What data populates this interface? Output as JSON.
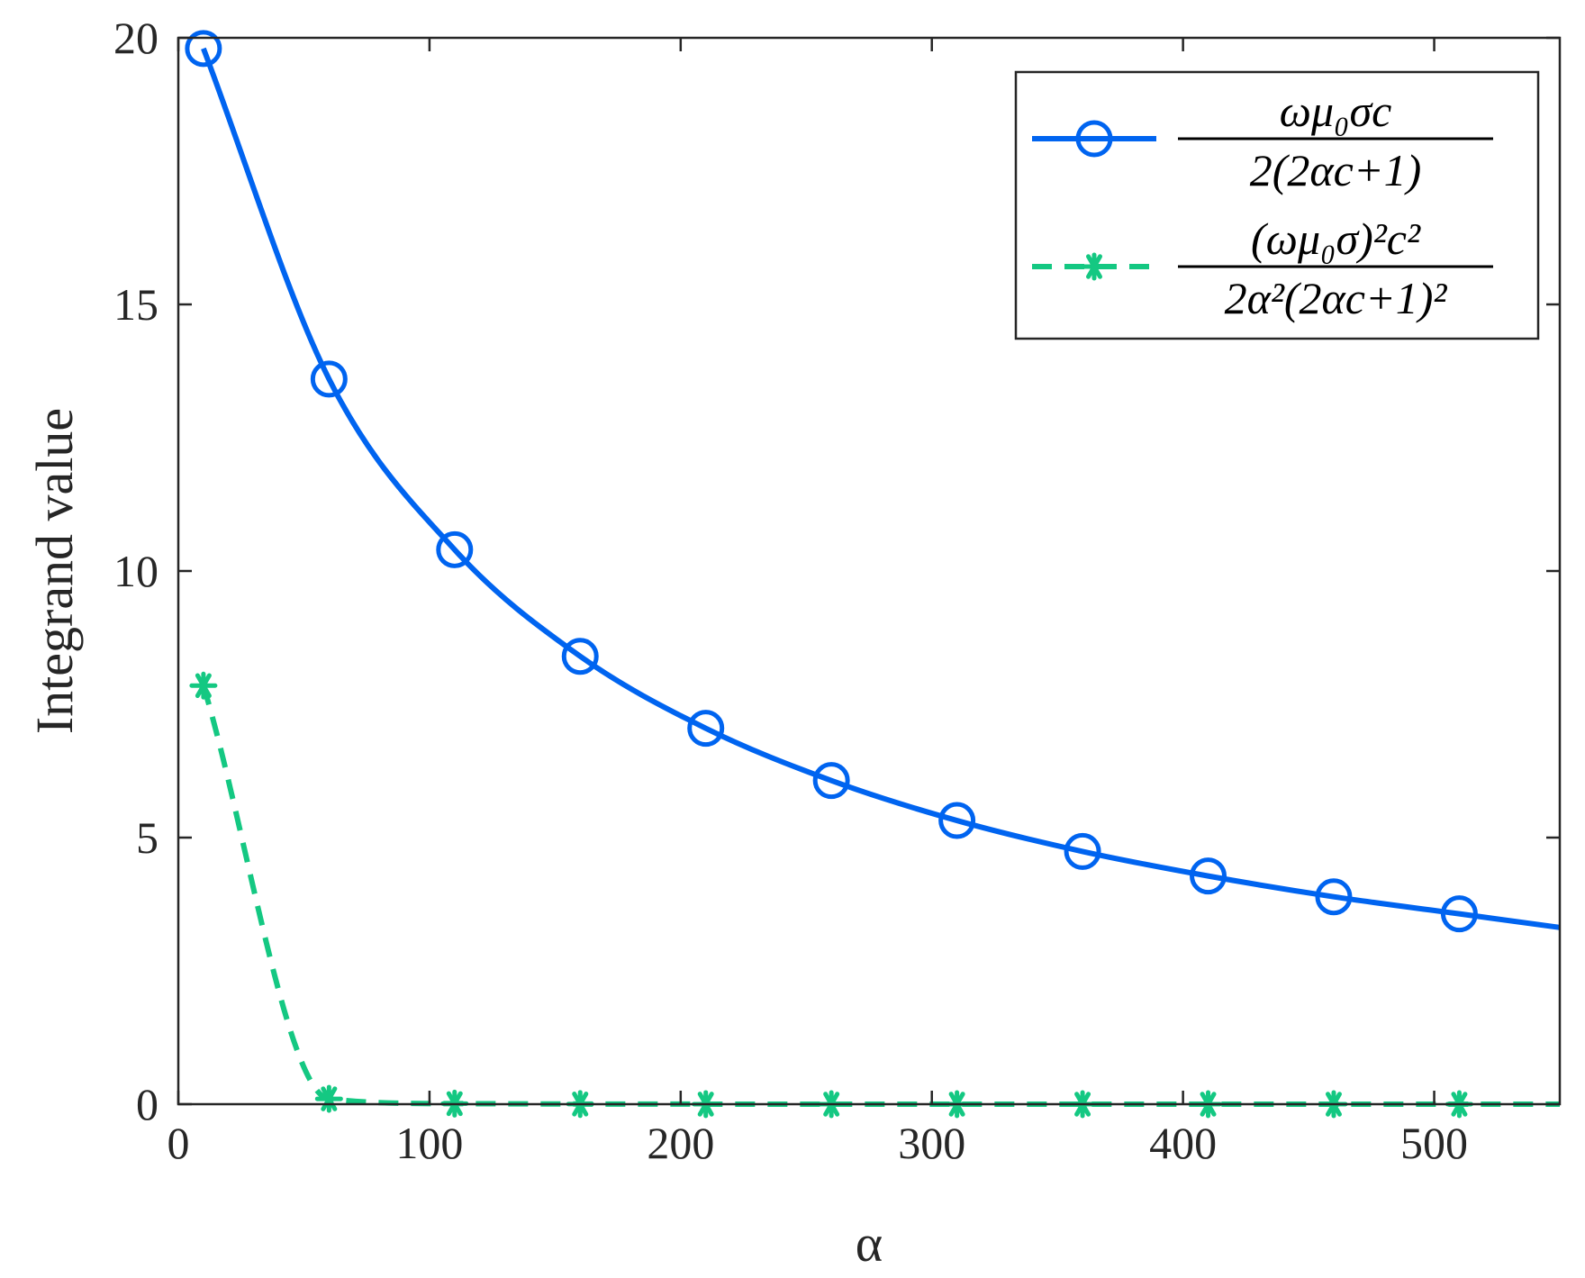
{
  "chart_data": {
    "type": "line",
    "xlabel": "α",
    "ylabel": "Integrand value",
    "xlim": [
      0,
      550
    ],
    "ylim": [
      0,
      20
    ],
    "xticks": [
      0,
      100,
      200,
      300,
      400,
      500
    ],
    "yticks": [
      0,
      5,
      10,
      15,
      20
    ],
    "grid": false,
    "legend_position": "top-right",
    "series": [
      {
        "name": "ωμ0σc / 2(2αc+1)",
        "legend_numerator": "ωμ₀σc",
        "legend_denominator": "2(2αc+1)",
        "color": "#0064f0",
        "line_style": "solid",
        "marker": "circle",
        "x": [
          10,
          60,
          110,
          160,
          210,
          260,
          310,
          360,
          410,
          460,
          510
        ],
        "y": [
          19.8,
          13.6,
          10.4,
          8.4,
          7.05,
          6.07,
          5.32,
          4.74,
          4.28,
          3.89,
          3.57
        ]
      },
      {
        "name": "(ωμ0σ)²c² / 2α²(2αc+1)²",
        "legend_numerator": "(ωμ₀σ)²c²",
        "legend_denominator": "2α²(2αc+1)²",
        "color": "#14c882",
        "line_style": "dashed",
        "marker": "asterisk",
        "x": [
          10,
          60,
          110,
          160,
          210,
          260,
          310,
          360,
          410,
          460,
          510
        ],
        "y": [
          7.85,
          0.1,
          0.01,
          0.003,
          0.001,
          0.0005,
          0.0003,
          0.0002,
          0.0001,
          0.0001,
          0.0001
        ]
      }
    ]
  }
}
